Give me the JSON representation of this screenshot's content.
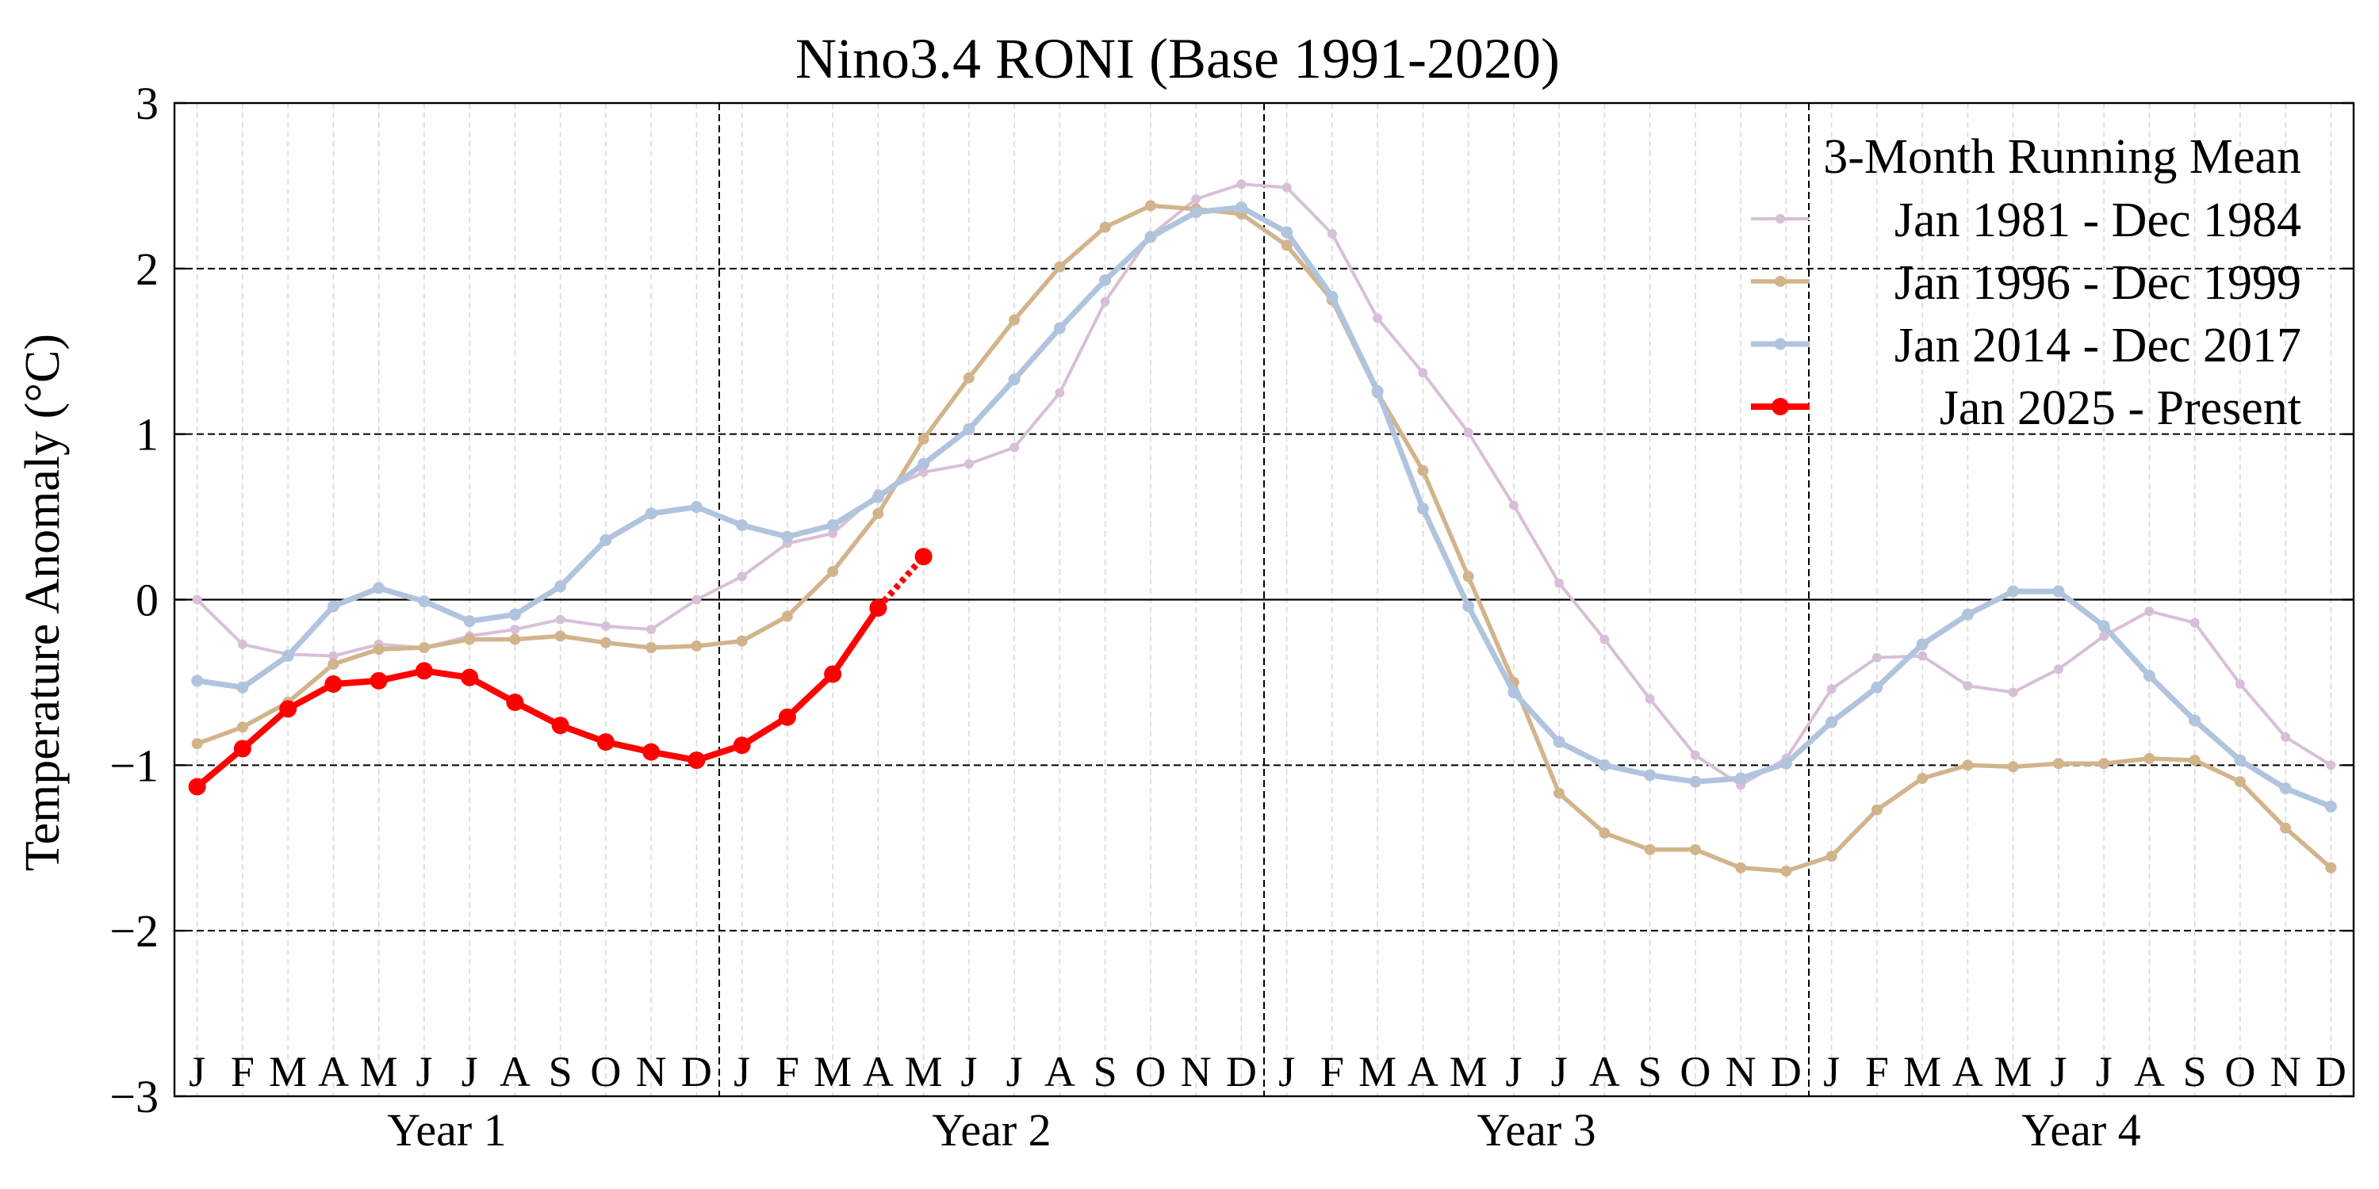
{
  "chart_data": {
    "type": "line",
    "title": "Nino3.4 RONI (Base 1991-2020)",
    "xlabel": "",
    "ylabel": "Temperature Anomaly (°C)",
    "ylim": [
      -3,
      3
    ],
    "yticks": [
      3,
      2,
      1,
      0,
      -1,
      -2,
      -3
    ],
    "ytick_labels": [
      "3",
      "2",
      "1",
      "0",
      "−1",
      "−2",
      "−3"
    ],
    "month_labels": [
      "J",
      "F",
      "M",
      "A",
      "M",
      "J",
      "J",
      "A",
      "S",
      "O",
      "N",
      "D",
      "J",
      "F",
      "M",
      "A",
      "M",
      "J",
      "J",
      "A",
      "S",
      "O",
      "N",
      "D",
      "J",
      "F",
      "M",
      "A",
      "M",
      "J",
      "J",
      "A",
      "S",
      "O",
      "N",
      "D",
      "J",
      "F",
      "M",
      "A",
      "M",
      "J",
      "J",
      "A",
      "S",
      "O",
      "N",
      "D"
    ],
    "year_labels": [
      "Year 1",
      "Year 2",
      "Year 3",
      "Year 4"
    ],
    "grid": true,
    "legend": {
      "title": "3-Month Running Mean",
      "placement": "top-right"
    },
    "series": [
      {
        "name": "Jan 1981 - Dec 1984",
        "color": "#d8bfd8",
        "values": [
          0.0,
          -0.27,
          -0.33,
          -0.34,
          -0.27,
          -0.29,
          -0.22,
          -0.18,
          -0.12,
          -0.16,
          -0.18,
          0.0,
          0.14,
          0.34,
          0.4,
          0.64,
          0.77,
          0.82,
          0.92,
          1.25,
          1.8,
          2.2,
          2.42,
          2.51,
          2.49,
          2.21,
          1.7,
          1.37,
          1.01,
          0.57,
          0.1,
          -0.24,
          -0.6,
          -0.94,
          -1.12,
          -0.96,
          -0.54,
          -0.35,
          -0.34,
          -0.52,
          -0.56,
          -0.42,
          -0.22,
          -0.07,
          -0.14,
          -0.51,
          -0.83,
          -1.0
        ]
      },
      {
        "name": "Jan 1996 - Dec 1999",
        "color": "#d2b48c",
        "values": [
          -0.87,
          -0.77,
          -0.62,
          -0.39,
          -0.3,
          -0.29,
          -0.24,
          -0.24,
          -0.22,
          -0.26,
          -0.29,
          -0.28,
          -0.25,
          -0.1,
          0.17,
          0.52,
          0.97,
          1.34,
          1.69,
          2.01,
          2.25,
          2.38,
          2.36,
          2.33,
          2.14,
          1.81,
          1.25,
          0.78,
          0.14,
          -0.5,
          -1.17,
          -1.41,
          -1.51,
          -1.51,
          -1.62,
          -1.64,
          -1.55,
          -1.27,
          -1.08,
          -1.0,
          -1.01,
          -0.99,
          -0.99,
          -0.96,
          -0.97,
          -1.1,
          -1.38,
          -1.62
        ]
      },
      {
        "name": "Jan 2014 - Dec 2017",
        "color": "#b0c4de",
        "values": [
          -0.49,
          -0.53,
          -0.34,
          -0.04,
          0.07,
          -0.01,
          -0.13,
          -0.09,
          0.08,
          0.36,
          0.52,
          0.56,
          0.45,
          0.38,
          0.45,
          0.62,
          0.82,
          1.03,
          1.33,
          1.64,
          1.93,
          2.19,
          2.34,
          2.37,
          2.22,
          1.83,
          1.26,
          0.55,
          -0.04,
          -0.56,
          -0.86,
          -1.0,
          -1.06,
          -1.1,
          -1.08,
          -0.99,
          -0.74,
          -0.53,
          -0.27,
          -0.09,
          0.05,
          0.05,
          -0.16,
          -0.46,
          -0.73,
          -0.97,
          -1.14,
          -1.25
        ]
      },
      {
        "name": "Jan 2025 - Present",
        "color": "#ff0000",
        "values": [
          -1.13,
          -0.9,
          -0.66,
          -0.51,
          -0.49,
          -0.43,
          -0.47,
          -0.62,
          -0.76,
          -0.86,
          -0.92,
          -0.97,
          -0.88,
          -0.71,
          -0.45,
          -0.05
        ],
        "projection": [
          -0.05,
          0.26
        ]
      }
    ]
  }
}
